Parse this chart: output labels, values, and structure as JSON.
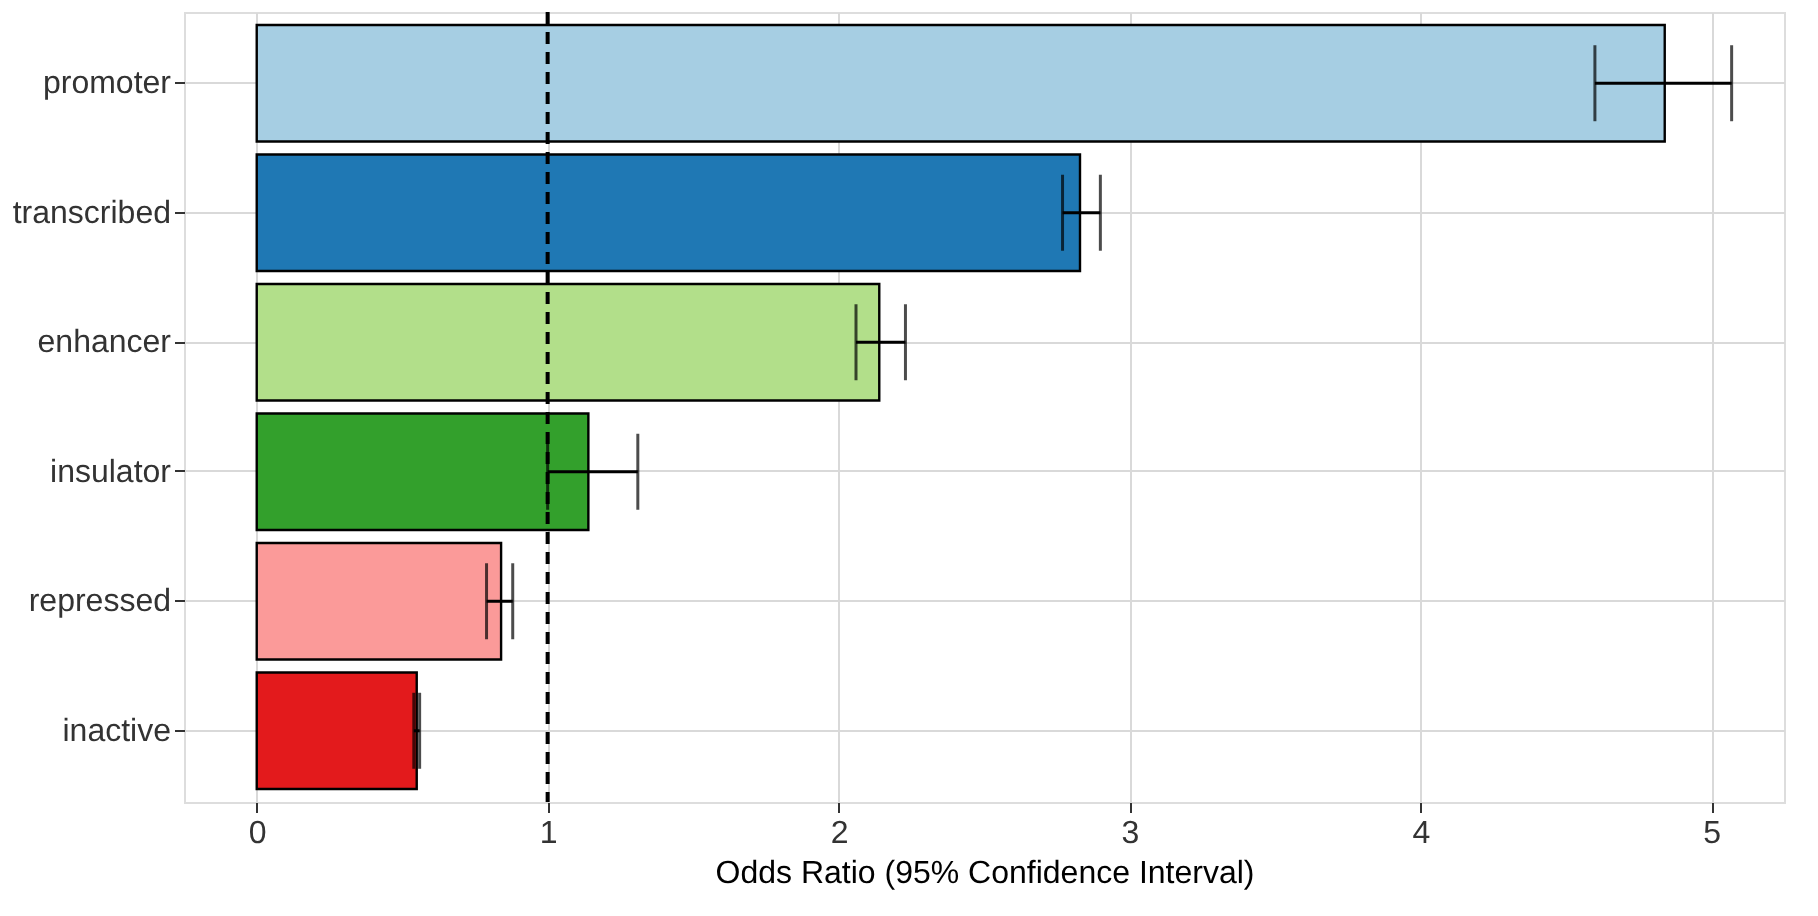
{
  "chart_data": {
    "type": "bar",
    "orientation": "horizontal",
    "xlabel": "Odds Ratio (95% Confidence Interval)",
    "categories": [
      "promoter",
      "transcribed",
      "enhancer",
      "insulator",
      "repressed",
      "inactive"
    ],
    "values": [
      4.84,
      2.83,
      2.14,
      1.14,
      0.84,
      0.55
    ],
    "colors": [
      "#a6cee3",
      "#1f78b4",
      "#b2df8a",
      "#33a02c",
      "#fb9a99",
      "#e31a1c"
    ],
    "errors": [
      [
        4.6,
        5.07
      ],
      [
        2.77,
        2.9
      ],
      [
        2.06,
        2.23
      ],
      [
        1.0,
        1.31
      ],
      [
        0.79,
        0.88
      ],
      [
        0.54,
        0.56
      ]
    ],
    "xlim": [
      -0.25,
      5.25
    ],
    "xticks": [
      0,
      1,
      2,
      3,
      4,
      5
    ],
    "ref_lines": [
      {
        "axis": "x",
        "value": 1,
        "color": "#000000",
        "line_style": "dashed"
      }
    ],
    "grid": true
  }
}
